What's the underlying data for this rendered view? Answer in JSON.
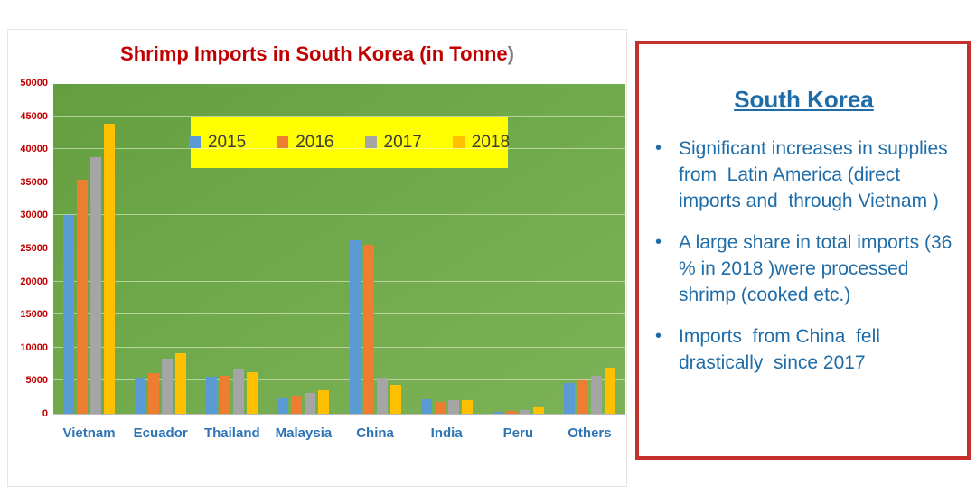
{
  "chart_data": {
    "type": "bar",
    "title": "Shrimp Imports in South Korea (in Tonne",
    "title_suffix": ")",
    "xlabel": "",
    "ylabel": "",
    "ylim": [
      0,
      50000
    ],
    "yticks": [
      0,
      5000,
      10000,
      15000,
      20000,
      25000,
      30000,
      35000,
      40000,
      45000,
      50000
    ],
    "grid": true,
    "legend_position": "top-inside",
    "legend_background": "#ffff00",
    "plot_background": "#6fa94a",
    "categories": [
      "Vietnam",
      "Ecuador",
      "Thailand",
      "Malaysia",
      "China",
      "India",
      "Peru",
      "Others"
    ],
    "series": [
      {
        "name": "2015",
        "color": "#5b9bd5",
        "values": [
          30000,
          5500,
          5600,
          2300,
          26200,
          2200,
          300,
          4700
        ]
      },
      {
        "name": "2016",
        "color": "#ed7d31",
        "values": [
          35400,
          6200,
          5800,
          2700,
          25500,
          1800,
          400,
          5000
        ]
      },
      {
        "name": "2017",
        "color": "#a5a5a5",
        "values": [
          38800,
          8300,
          6800,
          3100,
          5500,
          2100,
          500,
          5800
        ]
      },
      {
        "name": "2018",
        "color": "#ffc000",
        "values": [
          43800,
          9200,
          6300,
          3500,
          4400,
          2100,
          900,
          7000
        ]
      }
    ],
    "title_color": "#c00000",
    "ytick_color": "#c00000",
    "xtick_color": "#2e74b5"
  },
  "panel": {
    "title": "South Korea",
    "bullets": [
      "Significant increases in supplies from  Latin America (direct imports and  through Vietnam )",
      "A large share in total imports (36 % in 2018 )were processed shrimp (cooked etc.)",
      "Imports  from China  fell drastically  since 2017"
    ]
  }
}
